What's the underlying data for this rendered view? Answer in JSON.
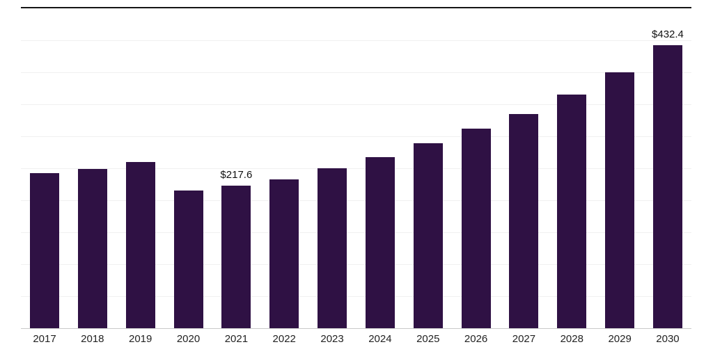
{
  "chart_data": {
    "type": "bar",
    "title": "",
    "xlabel": "",
    "ylabel": "",
    "categories": [
      "2017",
      "2018",
      "2019",
      "2020",
      "2021",
      "2022",
      "2023",
      "2024",
      "2025",
      "2026",
      "2027",
      "2028",
      "2029",
      "2030"
    ],
    "values": [
      237,
      244,
      254,
      211,
      217.6,
      228,
      245,
      262,
      283,
      305,
      328,
      357,
      391,
      432.4
    ],
    "data_labels": {
      "2021": "$217.6",
      "2030": "$432.4"
    },
    "bar_color": "#2f1144",
    "ylim": [
      0,
      489
    ],
    "grid": true,
    "gridline_count": 10,
    "legend_position": "none"
  }
}
